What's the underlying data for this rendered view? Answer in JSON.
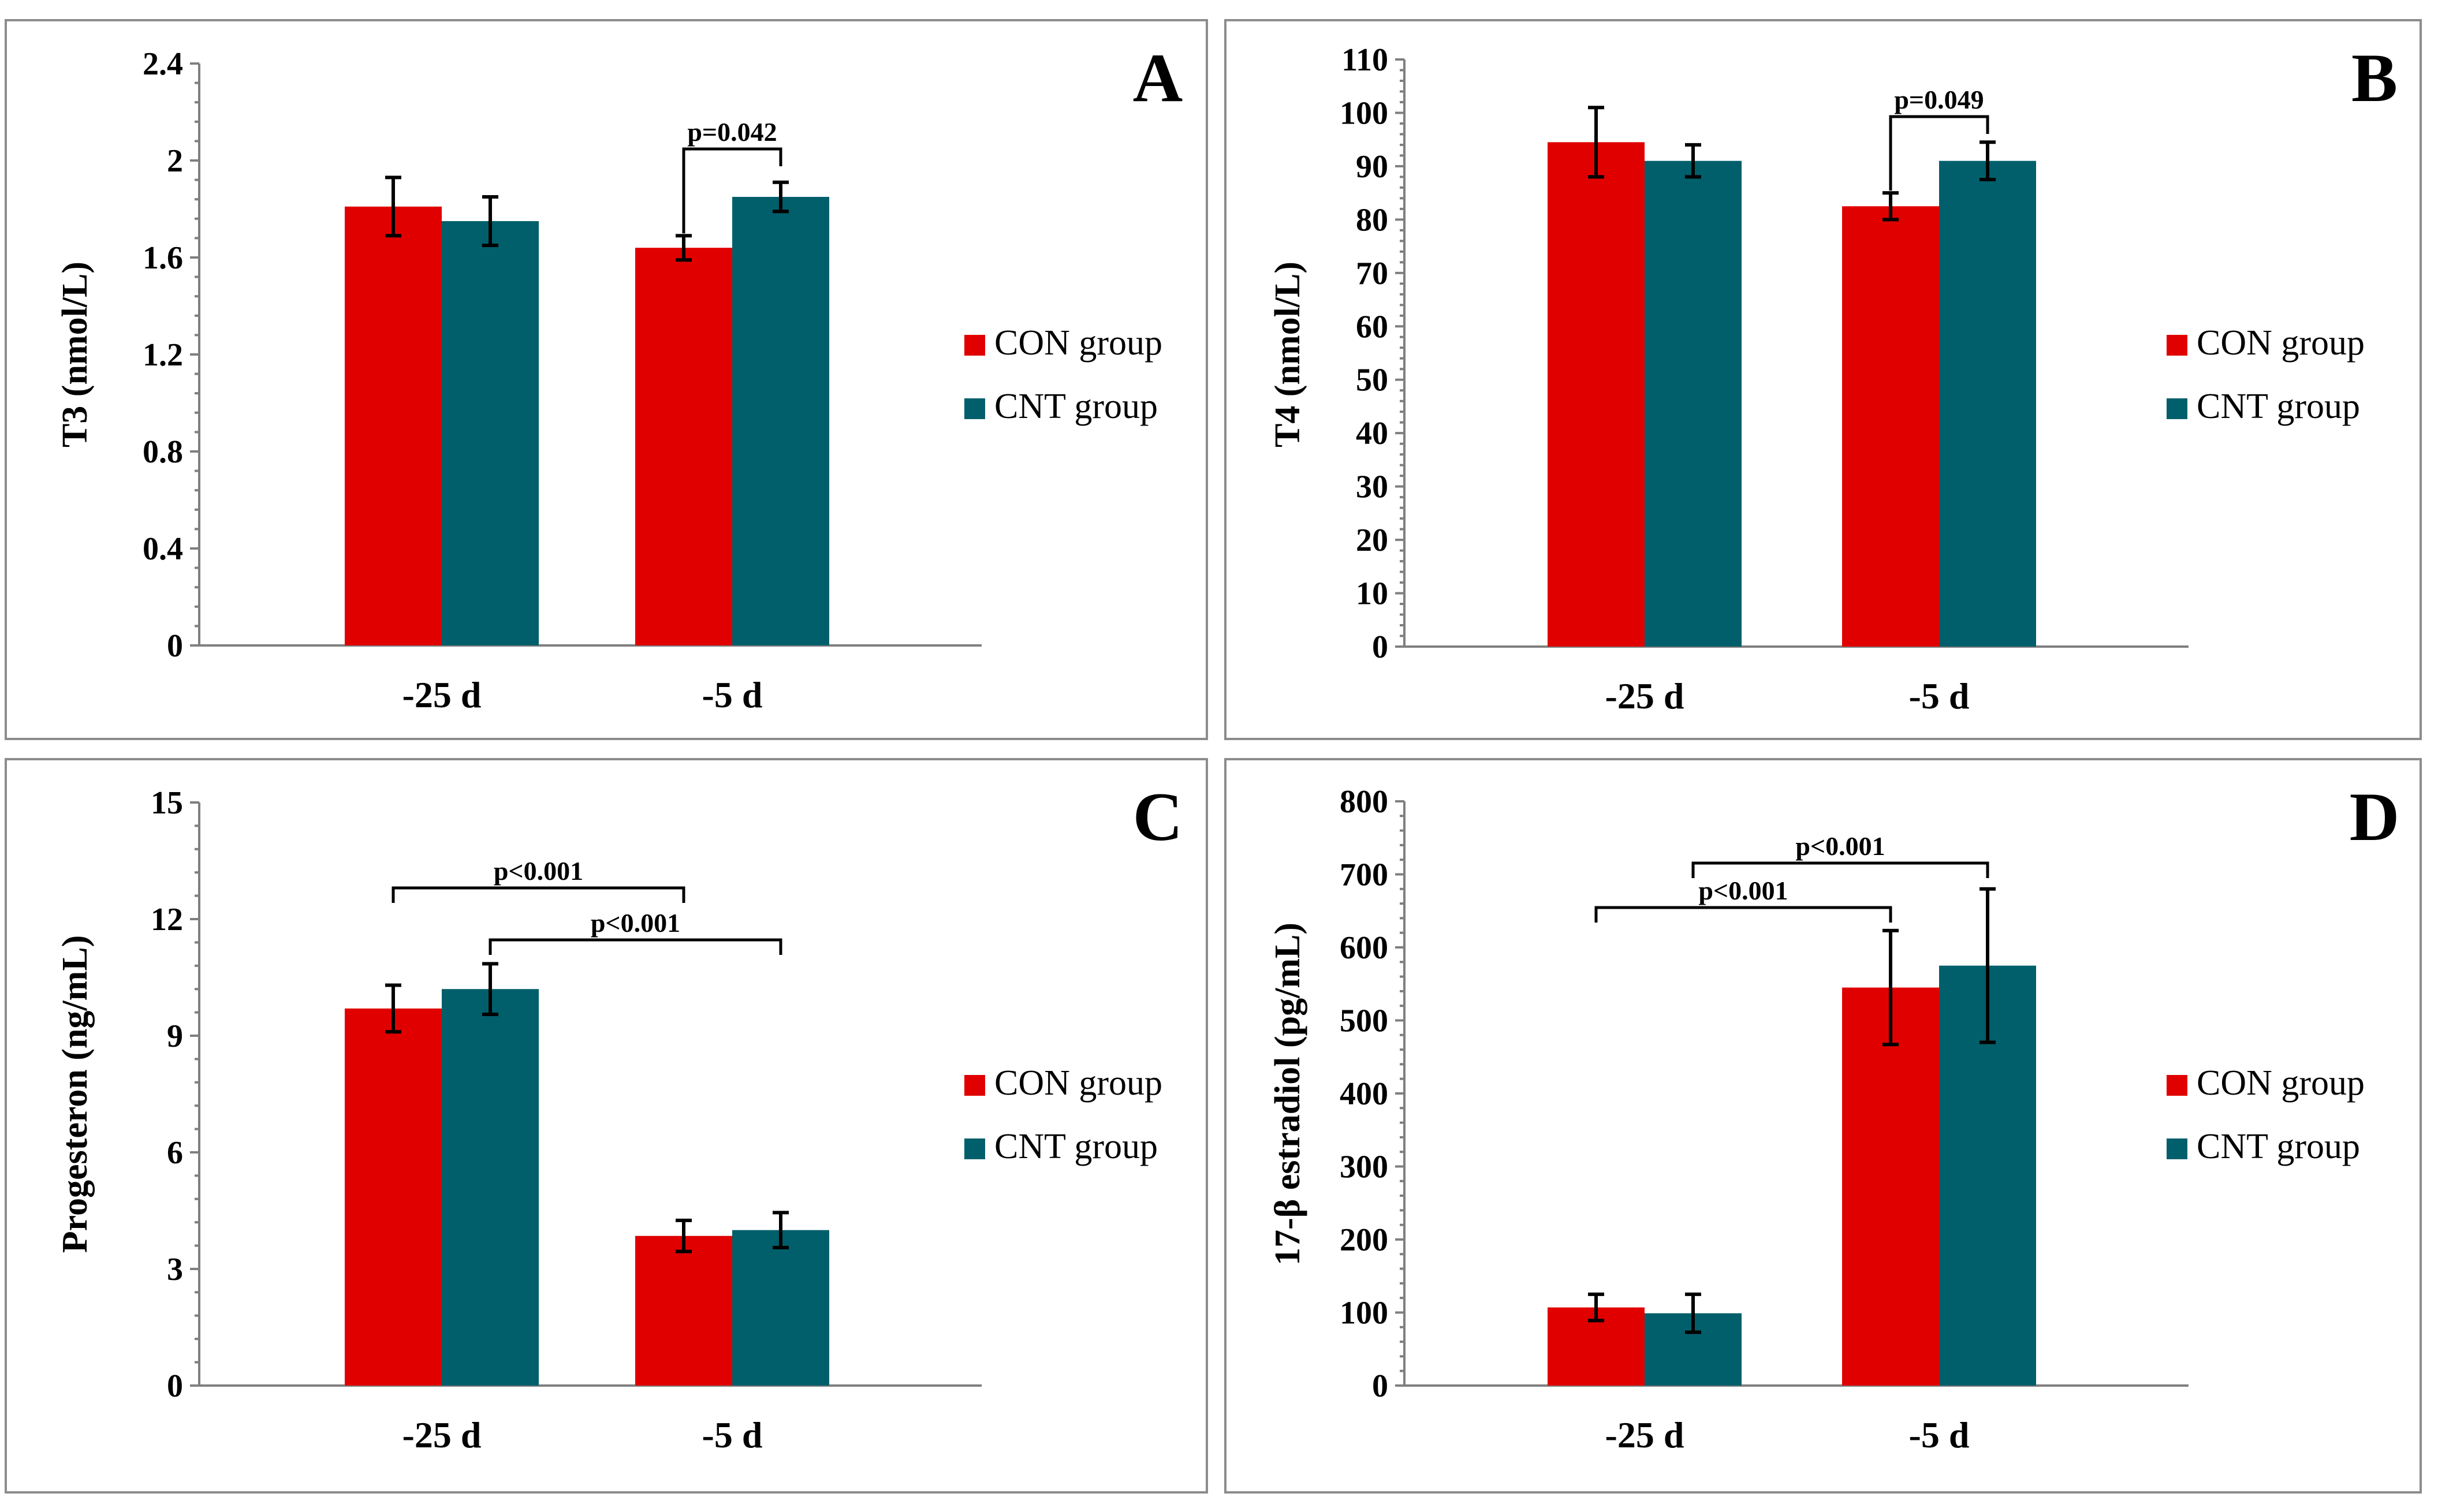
{
  "figure": {
    "colors": {
      "con": "#e00000",
      "cnt": "#005f6b",
      "axis": "#7f7f7f"
    }
  },
  "chart_data": [
    {
      "type": "bar",
      "panel": "A",
      "categories": [
        "-25 d",
        "-5 d"
      ],
      "ylabel": "T3 (nmol/L)",
      "ylim": [
        0,
        2.4
      ],
      "yticks": [
        0,
        0.4,
        0.8,
        1.2,
        1.6,
        2,
        2.4
      ],
      "ytick_labels": [
        "0",
        "0.4",
        "0.8",
        "1.2",
        "1.6",
        "2",
        "2.4"
      ],
      "legend": {
        "position": "right"
      },
      "series": [
        {
          "name": "CON group",
          "values": [
            1.81,
            1.64
          ],
          "errors": [
            0.12,
            0.05
          ]
        },
        {
          "name": "CNT group",
          "values": [
            1.75,
            1.85
          ],
          "errors": [
            0.1,
            0.06
          ]
        }
      ],
      "annotations": [
        {
          "label": "p=0.042",
          "from": [
            1,
            0
          ],
          "to": [
            1,
            1
          ]
        }
      ]
    },
    {
      "type": "bar",
      "panel": "B",
      "categories": [
        "-25 d",
        "-5 d"
      ],
      "ylabel": "T4 (nmol/L)",
      "ylim": [
        0,
        110
      ],
      "yticks": [
        0,
        10,
        20,
        30,
        40,
        50,
        60,
        70,
        80,
        90,
        100,
        110
      ],
      "ytick_labels": [
        "0",
        "10",
        "20",
        "30",
        "40",
        "50",
        "60",
        "70",
        "80",
        "90",
        "100",
        "110"
      ],
      "legend": {
        "position": "right"
      },
      "series": [
        {
          "name": "CON group",
          "values": [
            94.5,
            82.5
          ],
          "errors": [
            6.5,
            2.5
          ]
        },
        {
          "name": "CNT group",
          "values": [
            91.0,
            91.0
          ],
          "errors": [
            3.0,
            3.5
          ]
        }
      ],
      "annotations": [
        {
          "label": "p=0.049",
          "from": [
            1,
            0
          ],
          "to": [
            1,
            1
          ]
        }
      ]
    },
    {
      "type": "bar",
      "panel": "C",
      "categories": [
        "-25 d",
        "-5 d"
      ],
      "ylabel": "Progesteron (ng/mL)",
      "ylim": [
        0,
        15
      ],
      "yticks": [
        0,
        3,
        6,
        9,
        12,
        15
      ],
      "ytick_labels": [
        "0",
        "3",
        "6",
        "9",
        "12",
        "15"
      ],
      "legend": {
        "position": "right"
      },
      "series": [
        {
          "name": "CON group",
          "values": [
            9.7,
            3.85
          ],
          "errors": [
            0.6,
            0.4
          ]
        },
        {
          "name": "CNT group",
          "values": [
            10.2,
            4.0
          ],
          "errors": [
            0.65,
            0.45
          ]
        }
      ],
      "annotations": [
        {
          "label": "p<0.001",
          "from": [
            0,
            0
          ],
          "to": [
            1,
            0
          ]
        },
        {
          "label": "p<0.001",
          "from": [
            0,
            1
          ],
          "to": [
            1,
            1
          ]
        }
      ]
    },
    {
      "type": "bar",
      "panel": "D",
      "categories": [
        "-25 d",
        "-5 d"
      ],
      "ylabel": "17-β estradiol (pg/mL)",
      "ylim": [
        0,
        800
      ],
      "yticks": [
        0,
        100,
        200,
        300,
        400,
        500,
        600,
        700,
        800
      ],
      "ytick_labels": [
        "0",
        "100",
        "200",
        "300",
        "400",
        "500",
        "600",
        "700",
        "800"
      ],
      "legend": {
        "position": "right"
      },
      "series": [
        {
          "name": "CON group",
          "values": [
            107,
            545
          ],
          "errors": [
            18,
            78
          ]
        },
        {
          "name": "CNT group",
          "values": [
            99,
            575
          ],
          "errors": [
            26,
            105
          ]
        }
      ],
      "annotations": [
        {
          "label": "p<0.001",
          "from": [
            0,
            1
          ],
          "to": [
            1,
            1
          ]
        },
        {
          "label": "p<0.001",
          "from": [
            0,
            0
          ],
          "to": [
            1,
            0
          ]
        }
      ]
    }
  ]
}
